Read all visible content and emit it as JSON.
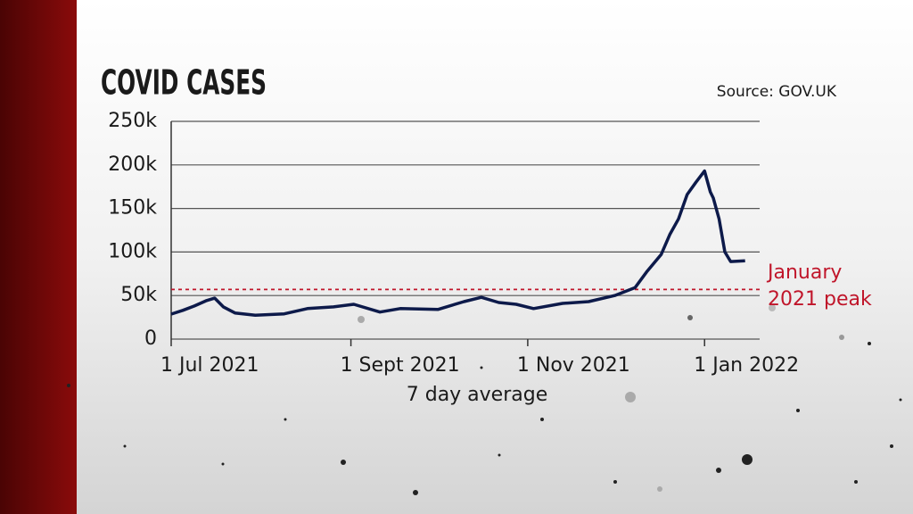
{
  "chart_data": {
    "type": "line",
    "title": "COVID CASES",
    "source": "Source: GOV.UK",
    "x_label": "7 day average",
    "x": [
      "2021-07-01",
      "2021-07-05",
      "2021-07-09",
      "2021-07-13",
      "2021-07-16",
      "2021-07-19",
      "2021-07-23",
      "2021-07-30",
      "2021-08-09",
      "2021-08-17",
      "2021-08-26",
      "2021-09-02",
      "2021-09-11",
      "2021-09-18",
      "2021-10-01",
      "2021-10-10",
      "2021-10-16",
      "2021-10-22",
      "2021-10-28",
      "2021-11-03",
      "2021-11-13",
      "2021-11-22",
      "2021-12-01",
      "2021-12-08",
      "2021-12-12",
      "2021-12-17",
      "2021-12-20",
      "2021-12-23",
      "2021-12-26",
      "2021-12-29",
      "2022-01-01",
      "2022-01-03",
      "2022-01-04",
      "2022-01-06",
      "2022-01-08",
      "2022-01-10",
      "2022-01-15"
    ],
    "series": [
      {
        "name": "7 day average",
        "color": "#0d1a4a",
        "values": [
          28700,
          33000,
          38000,
          44000,
          47000,
          37000,
          30000,
          27500,
          29000,
          35000,
          37000,
          40000,
          31000,
          35000,
          34000,
          43000,
          48000,
          42000,
          40000,
          35000,
          41000,
          43000,
          50000,
          59000,
          77000,
          97000,
          120000,
          138000,
          166000,
          180000,
          193000,
          169000,
          162000,
          138000,
          100000,
          89000,
          90000
        ]
      }
    ],
    "xlim": [
      "2021-07-01",
      "2022-01-20"
    ],
    "xticks": [
      {
        "value": "2021-07-01",
        "label": "1 Jul 2021"
      },
      {
        "value": "2021-09-01",
        "label": "1 Sept 2021"
      },
      {
        "value": "2021-11-01",
        "label": "1 Nov 2021"
      },
      {
        "value": "2022-01-01",
        "label": "1 Jan 2022"
      }
    ],
    "ylim": [
      0,
      250000
    ],
    "yticks": [
      0,
      {
        "value": 50000,
        "label": "50k"
      },
      {
        "value": 100000,
        "label": "100k"
      },
      {
        "value": 150000,
        "label": "150k"
      },
      {
        "value": 200000,
        "label": "200k"
      },
      {
        "value": 250000,
        "label": "250k"
      }
    ],
    "grid": true,
    "reference_line": {
      "value": 57000,
      "label": [
        "January",
        "2021 peak"
      ],
      "color": "#c0152a"
    }
  }
}
